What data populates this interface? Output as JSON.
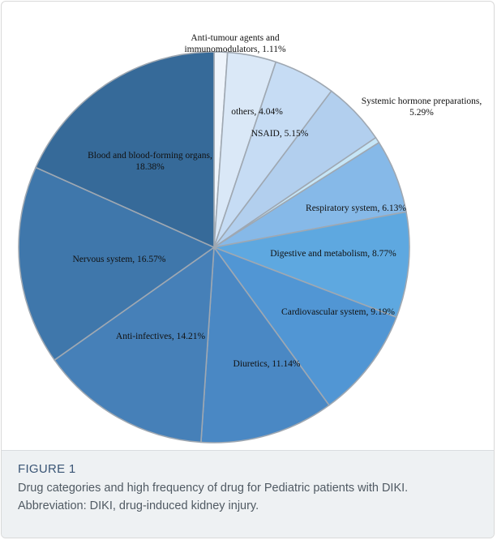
{
  "chart_data": {
    "type": "pie",
    "series": [
      {
        "values": [
          1.11,
          4.04,
          5.15,
          5.29,
          0.48,
          6.13,
          8.77,
          9.19,
          11.14,
          14.21,
          16.57,
          18.38
        ],
        "labels": [
          [
            "Anti-tumour agents and",
            "immunomodulators, 1.11%"
          ],
          [
            "others, 4.04%"
          ],
          [
            "NSAID, 5.15%"
          ],
          [
            "Systemic hormone preparations,",
            "5.29%"
          ],
          [],
          [
            "Respiratory system, 6.13%"
          ],
          [
            "Digestive and metabolism, 8.77%"
          ],
          [
            "Cardiovascular system, 9.19%"
          ],
          [
            "Diuretics, 11.14%"
          ],
          [
            "Anti-infectives, 14.21%"
          ],
          [
            "Nervous system, 16.57%"
          ],
          [
            "Blood and blood-forming organs,",
            "18.38%"
          ]
        ],
        "colors": [
          "#eef4fb",
          "#dae8f7",
          "#c6dcf4",
          "#b2cfee",
          "#c6e6f7",
          "#86b9e8",
          "#5ea8e0",
          "#5196d4",
          "#4a88c4",
          "#4680b8",
          "#3f77ab",
          "#366a99"
        ]
      }
    ],
    "start": "12 o'clock",
    "direction": "clockwise",
    "legend": "none"
  },
  "caption": {
    "label": "FIGURE 1",
    "text": "Drug categories and high frequency of drug for Pediatric patients with DIKI. Abbreviation: DIKI, drug-induced kidney injury."
  }
}
